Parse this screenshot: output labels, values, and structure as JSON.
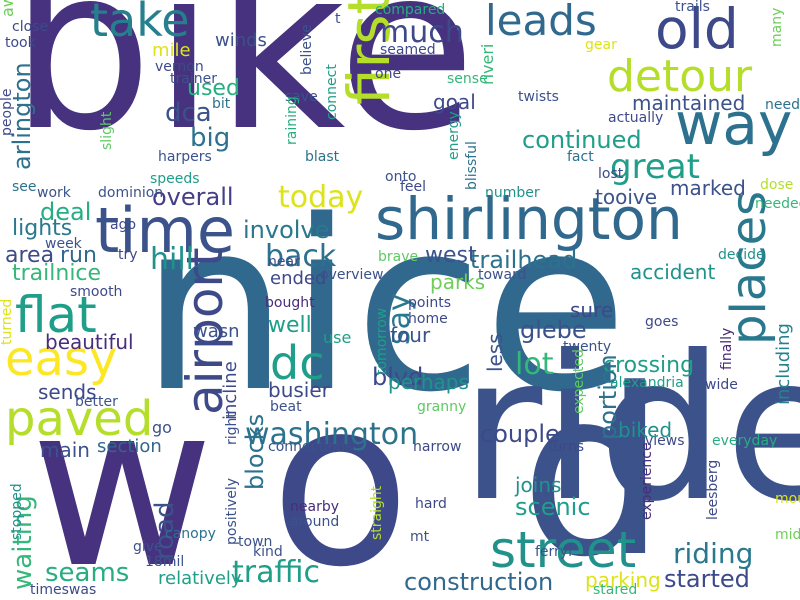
{
  "cloud": {
    "words": [
      {
        "text": "bike",
        "color": "#46327e"
      },
      {
        "text": "nice",
        "color": "#31688e"
      },
      {
        "text": "w",
        "color": "#46327e"
      },
      {
        "text": "ride",
        "color": "#3b528b"
      },
      {
        "text": "o",
        "color": "#3e4989"
      },
      {
        "text": "d",
        "color": "#3b528b"
      },
      {
        "text": "shirlington",
        "color": "#31688e"
      },
      {
        "text": "time",
        "color": "#3b528b"
      },
      {
        "text": "street",
        "color": "#21918c"
      },
      {
        "text": "way",
        "color": "#2c728e"
      },
      {
        "text": "take",
        "color": "#277f8e"
      },
      {
        "text": "old",
        "color": "#3e4989"
      },
      {
        "text": "leads",
        "color": "#31688e"
      },
      {
        "text": "detour",
        "color": "#b5de2b"
      },
      {
        "text": "first",
        "color": "#b5de2b"
      },
      {
        "text": "flat",
        "color": "#1f9e89"
      },
      {
        "text": "easy",
        "color": "#fde725"
      },
      {
        "text": "paved",
        "color": "#b5de2b"
      },
      {
        "text": "dc",
        "color": "#1f9e89"
      },
      {
        "text": "airport",
        "color": "#3e4989"
      },
      {
        "text": "places",
        "color": "#2a788e"
      },
      {
        "text": "washington",
        "color": "#2c728e"
      },
      {
        "text": "much",
        "color": "#3e4989"
      },
      {
        "text": "great",
        "color": "#1f9e89"
      },
      {
        "text": "today",
        "color": "#dde318"
      },
      {
        "text": "traffic",
        "color": "#1f9e89"
      },
      {
        "text": "riding",
        "color": "#2a788e"
      },
      {
        "text": "construction",
        "color": "#31688e"
      },
      {
        "text": "started",
        "color": "#3e4989"
      },
      {
        "text": "seams",
        "color": "#27ad81"
      },
      {
        "text": "hill",
        "color": "#21918c"
      },
      {
        "text": "back",
        "color": "#2c728e"
      },
      {
        "text": "lot",
        "color": "#35b779"
      },
      {
        "text": "say",
        "color": "#2a788e"
      },
      {
        "text": "continued",
        "color": "#1f9e89"
      },
      {
        "text": "crossing",
        "color": "#1f9e89"
      },
      {
        "text": "couple",
        "color": "#3e4989"
      },
      {
        "text": "joins",
        "color": "#21918c"
      },
      {
        "text": "scenic",
        "color": "#1f9e89"
      },
      {
        "text": "portion",
        "color": "#2c728e"
      },
      {
        "text": "blocks",
        "color": "#2c728e"
      },
      {
        "text": "overall",
        "color": "#433e85"
      },
      {
        "text": "big",
        "color": "#2c728e"
      },
      {
        "text": "dca",
        "color": "#3b528b"
      },
      {
        "text": "used",
        "color": "#27ad81"
      },
      {
        "text": "maintained",
        "color": "#3b528b"
      },
      {
        "text": "marked",
        "color": "#3b528b"
      },
      {
        "text": "trailhead",
        "color": "#2c728e"
      },
      {
        "text": "glebe",
        "color": "#3b528b"
      },
      {
        "text": "blvd",
        "color": "#3e4989"
      },
      {
        "text": "sends",
        "color": "#3e4989"
      },
      {
        "text": "involve",
        "color": "#2a788e"
      },
      {
        "text": "west",
        "color": "#3b528b"
      },
      {
        "text": "deal",
        "color": "#27ad81"
      },
      {
        "text": "lights",
        "color": "#2a788e"
      },
      {
        "text": "area",
        "color": "#3e4989"
      },
      {
        "text": "run",
        "color": "#31688e"
      },
      {
        "text": "trailnice",
        "color": "#35b779"
      },
      {
        "text": "beautiful",
        "color": "#472d7b"
      },
      {
        "text": "main",
        "color": "#3b528b"
      },
      {
        "text": "section",
        "color": "#31688e"
      },
      {
        "text": "road",
        "color": "#3b528b"
      },
      {
        "text": "waiting",
        "color": "#35b779"
      },
      {
        "text": "arlington",
        "color": "#2c728e"
      },
      {
        "text": "accident",
        "color": "#21918c"
      },
      {
        "text": "parks",
        "color": "#6ece58"
      },
      {
        "text": "sure",
        "color": "#3e4989"
      },
      {
        "text": "including",
        "color": "#26828e"
      },
      {
        "text": "well",
        "color": "#1f9e89"
      },
      {
        "text": "four",
        "color": "#3b528b"
      },
      {
        "text": "perhaps",
        "color": "#21918c"
      },
      {
        "text": "busier",
        "color": "#3e4989"
      },
      {
        "text": "incline",
        "color": "#3e4989"
      },
      {
        "text": "goal",
        "color": "#3e4989"
      },
      {
        "text": "ended",
        "color": "#3e4989"
      },
      {
        "text": "biked",
        "color": "#21918c"
      },
      {
        "text": "tooive",
        "color": "#3b528b"
      },
      {
        "text": "mile",
        "color": "#dde318"
      },
      {
        "text": "winds",
        "color": "#3b528b"
      },
      {
        "text": "parking",
        "color": "#dde318"
      },
      {
        "text": "relatively",
        "color": "#1f9e89"
      },
      {
        "text": "less",
        "color": "#3b528b"
      },
      {
        "text": "wasn",
        "color": "#3b528b"
      },
      {
        "text": "near",
        "color": "#3e4989"
      },
      {
        "text": "go",
        "color": "#3b528b"
      },
      {
        "text": "right",
        "color": "#3b528b"
      },
      {
        "text": "use",
        "color": "#1f9e89"
      },
      {
        "text": "connections",
        "color": "#3b528b"
      },
      {
        "text": "narrow",
        "color": "#3e4989"
      },
      {
        "text": "views",
        "color": "#3e4989"
      },
      {
        "text": "everyday",
        "color": "#27ad81"
      },
      {
        "text": "turns",
        "color": "#3e4989"
      },
      {
        "text": "finally",
        "color": "#482878"
      },
      {
        "text": "wide",
        "color": "#3e4989"
      },
      {
        "text": "goes",
        "color": "#3e4989"
      },
      {
        "text": "decide",
        "color": "#21918c"
      },
      {
        "text": "twenty",
        "color": "#3b528b"
      },
      {
        "text": "alexandria",
        "color": "#1f9e89"
      },
      {
        "text": "expected",
        "color": "#5ec962"
      },
      {
        "text": "experience",
        "color": "#472d7b"
      },
      {
        "text": "leesberg",
        "color": "#3e4989"
      },
      {
        "text": "mount",
        "color": "#dde318"
      },
      {
        "text": "middle",
        "color": "#6ece58"
      },
      {
        "text": "fact",
        "color": "#2c728e"
      },
      {
        "text": "lost",
        "color": "#3e4989"
      },
      {
        "text": "dose",
        "color": "#b5de2b"
      },
      {
        "text": "needed",
        "color": "#35b779"
      },
      {
        "text": "actually",
        "color": "#3e4989"
      },
      {
        "text": "need",
        "color": "#2c728e"
      },
      {
        "text": "twists",
        "color": "#3b528b"
      },
      {
        "text": "riveri",
        "color": "#35b779"
      },
      {
        "text": "trails",
        "color": "#3b528b"
      },
      {
        "text": "gear",
        "color": "#dde318"
      },
      {
        "text": "many",
        "color": "#6ece58"
      },
      {
        "text": "compared",
        "color": "#27ad81"
      },
      {
        "text": "seamed",
        "color": "#3e4989"
      },
      {
        "text": "one",
        "color": "#3e4989"
      },
      {
        "text": "sense",
        "color": "#35b779"
      },
      {
        "text": "energy",
        "color": "#1f9e89"
      },
      {
        "text": "blissful",
        "color": "#2c728e"
      },
      {
        "text": "onto",
        "color": "#3b528b"
      },
      {
        "text": "feel",
        "color": "#3e4989"
      },
      {
        "text": "number",
        "color": "#21918c"
      },
      {
        "text": "close",
        "color": "#3e4989"
      },
      {
        "text": "took",
        "color": "#3e4989"
      },
      {
        "text": "away",
        "color": "#6ece58"
      },
      {
        "text": "vernon",
        "color": "#3e4989"
      },
      {
        "text": "trainer",
        "color": "#3b528b"
      },
      {
        "text": "bit",
        "color": "#2c728e"
      },
      {
        "text": "save",
        "color": "#3b528b"
      },
      {
        "text": "believe",
        "color": "#3b528b"
      },
      {
        "text": "connect",
        "color": "#1f9e89"
      },
      {
        "text": "raining",
        "color": "#27ad81"
      },
      {
        "text": "blast",
        "color": "#2c728e"
      },
      {
        "text": "t",
        "color": "#3b528b"
      },
      {
        "text": "people",
        "color": "#3e4989"
      },
      {
        "text": "slight",
        "color": "#5ec962"
      },
      {
        "text": "harpers",
        "color": "#3b528b"
      },
      {
        "text": "speeds",
        "color": "#1f9e89"
      },
      {
        "text": "see",
        "color": "#2c728e"
      },
      {
        "text": "work",
        "color": "#3b528b"
      },
      {
        "text": "dominion",
        "color": "#3b528b"
      },
      {
        "text": "ago",
        "color": "#3e4989"
      },
      {
        "text": "try",
        "color": "#3e4989"
      },
      {
        "text": "week",
        "color": "#3b528b"
      },
      {
        "text": "smooth",
        "color": "#3e4989"
      },
      {
        "text": "turned",
        "color": "#dde318"
      },
      {
        "text": "better",
        "color": "#3b528b"
      },
      {
        "text": "brave",
        "color": "#5ec962"
      },
      {
        "text": "overview",
        "color": "#3b528b"
      },
      {
        "text": "bought",
        "color": "#472d7b"
      },
      {
        "text": "points",
        "color": "#3e4989"
      },
      {
        "text": "home",
        "color": "#3e4989"
      },
      {
        "text": "toward",
        "color": "#3b528b"
      },
      {
        "text": "tomorrow",
        "color": "#1f9e89"
      },
      {
        "text": "beat",
        "color": "#3b528b"
      },
      {
        "text": "granny",
        "color": "#5ec962"
      },
      {
        "text": "hard",
        "color": "#3e4989"
      },
      {
        "text": "mt",
        "color": "#3b528b"
      },
      {
        "text": "nearby",
        "color": "#472d7b"
      },
      {
        "text": "around",
        "color": "#3b528b"
      },
      {
        "text": "straight",
        "color": "#b5de2b"
      },
      {
        "text": "town",
        "color": "#3b528b"
      },
      {
        "text": "kind",
        "color": "#3b528b"
      },
      {
        "text": "positively",
        "color": "#3b528b"
      },
      {
        "text": "canopy",
        "color": "#2c728e"
      },
      {
        "text": "give",
        "color": "#3b528b"
      },
      {
        "text": "18mil",
        "color": "#3b528b"
      },
      {
        "text": "stopped",
        "color": "#21918c"
      },
      {
        "text": "timeswas",
        "color": "#3e4989"
      },
      {
        "text": "ferryi",
        "color": "#3b528b"
      },
      {
        "text": "stared",
        "color": "#35b779"
      }
    ]
  }
}
